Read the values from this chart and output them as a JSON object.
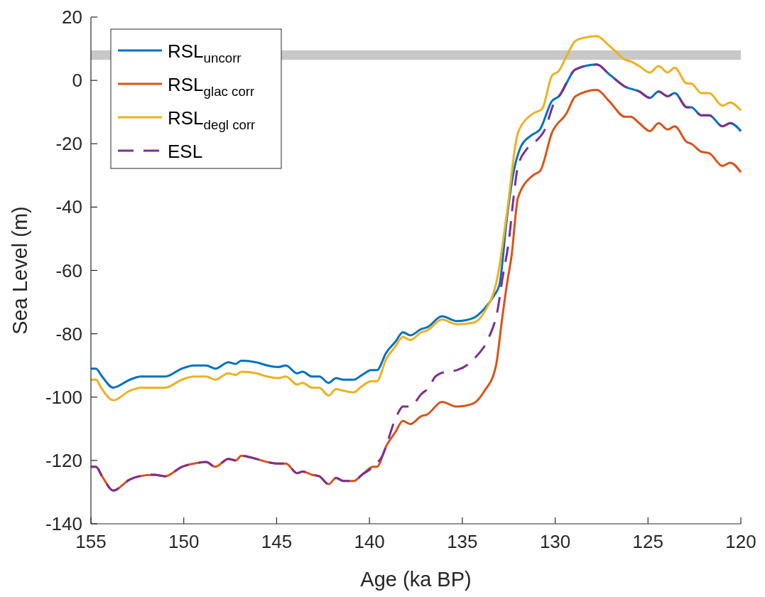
{
  "chart_data": {
    "type": "line",
    "xlabel": "Age (ka BP)",
    "ylabel": "Sea Level (m)",
    "xlim": [
      155,
      120
    ],
    "ylim": [
      -140,
      20
    ],
    "xticks": [
      155,
      150,
      145,
      140,
      135,
      130,
      125,
      120
    ],
    "yticks": [
      -140,
      -120,
      -100,
      -80,
      -60,
      -40,
      -20,
      0,
      20
    ],
    "grid": false,
    "legend": "top left",
    "bands": [
      {
        "axis": "y",
        "from": 6.5,
        "to": 9.5,
        "color": "#c8c8c8"
      }
    ],
    "series": [
      {
        "name": "RSL$_{uncorr}$",
        "color": "#0072bd",
        "line_style": "solid",
        "x": [
          155,
          154.73,
          154.4,
          153.8,
          152.9,
          152.3,
          151.6,
          151,
          150.1,
          149.45,
          148.8,
          148.3,
          147.6,
          147.2,
          146.9,
          146.1,
          145.5,
          144.9,
          144.5,
          143.9,
          143.6,
          143.1,
          142.7,
          142.2,
          141.8,
          141.4,
          140.85,
          140.4,
          139.9,
          139.6,
          139.1,
          138.6,
          138.2,
          137.8,
          137.2,
          136.9,
          136.1,
          135.3,
          134.4,
          133.8,
          133.3,
          133,
          132.6,
          132.24,
          131.85,
          131.32,
          130.82,
          130.17,
          129.79,
          128.9,
          127.76,
          127.1,
          126.23,
          125.47,
          124.9,
          124.43,
          123.94,
          123.56,
          122.9,
          122.67,
          122.14,
          121.7,
          120.99,
          120.57,
          120
        ],
        "values": [
          -91,
          -91,
          -93.5,
          -97,
          -94.5,
          -93.5,
          -93.5,
          -93.5,
          -91,
          -90,
          -90,
          -91,
          -89,
          -89.5,
          -88.5,
          -89,
          -90,
          -90.5,
          -90,
          -92.5,
          -92,
          -93.5,
          -93.5,
          -95.5,
          -94,
          -94.5,
          -94.5,
          -93,
          -91.5,
          -91.5,
          -86,
          -82.5,
          -79.5,
          -80.5,
          -78.5,
          -78,
          -74.5,
          -76,
          -75,
          -72,
          -68,
          -64.5,
          -43.5,
          -29,
          -21,
          -17.5,
          -15.5,
          -6.5,
          -5,
          3.5,
          5,
          2,
          -2,
          -3.5,
          -5.5,
          -3.5,
          -5,
          -4,
          -8.5,
          -8.5,
          -11,
          -11,
          -14.5,
          -13.5,
          -16
        ]
      },
      {
        "name": "RSL$_{glac corr}$",
        "color": "#d95319",
        "line_style": "solid",
        "x": [
          155,
          154.73,
          154.4,
          153.8,
          152.9,
          152.4,
          151.6,
          151,
          150.1,
          149.45,
          148.8,
          148.3,
          147.6,
          147.2,
          146.9,
          146.1,
          145.5,
          144.9,
          144.5,
          143.9,
          143.6,
          143.1,
          142.7,
          142.2,
          141.8,
          141.4,
          140.85,
          140.4,
          139.8,
          139.6,
          139.1,
          138.6,
          138.2,
          137.8,
          137.2,
          136.9,
          136.1,
          135.3,
          134.4,
          133.8,
          133.2,
          132.85,
          132.6,
          132.35,
          132,
          131.2,
          130.8,
          130.17,
          129.4,
          128.9,
          127.76,
          127.1,
          126.23,
          125.93,
          125.47,
          124.9,
          124.43,
          123.94,
          123.56,
          122.9,
          122.67,
          122.14,
          121.7,
          120.99,
          120.57,
          120
        ],
        "values": [
          -122,
          -122,
          -125,
          -129.5,
          -126,
          -125,
          -124.5,
          -125,
          -122,
          -121,
          -120.5,
          -122,
          -119.5,
          -120,
          -118.5,
          -119.5,
          -120.5,
          -121,
          -121,
          -124,
          -123.5,
          -124.5,
          -125,
          -127.5,
          -125.5,
          -126.5,
          -126.5,
          -124.5,
          -122,
          -122,
          -115.5,
          -111,
          -107.5,
          -108.5,
          -106,
          -105.5,
          -101.5,
          -103,
          -102,
          -98,
          -90.5,
          -75,
          -64.5,
          -55.5,
          -37,
          -30,
          -28.5,
          -16.5,
          -10.5,
          -5,
          -3,
          -6.5,
          -11.5,
          -11.5,
          -13.5,
          -16,
          -13.5,
          -15.5,
          -14.5,
          -19.5,
          -20,
          -22.5,
          -23,
          -27,
          -26,
          -29
        ]
      },
      {
        "name": "RSL$_{degl corr}$",
        "color": "#edb120",
        "line_style": "solid",
        "x": [
          155,
          154.73,
          154.4,
          153.8,
          152.9,
          152.3,
          151.6,
          151,
          150.1,
          149.45,
          148.8,
          148.3,
          147.6,
          147.2,
          146.9,
          146.1,
          145.5,
          144.9,
          144.5,
          143.9,
          143.6,
          143.1,
          142.7,
          142.2,
          141.8,
          141.4,
          140.85,
          140.4,
          139.9,
          139.6,
          139.1,
          138.6,
          138.2,
          137.8,
          137.2,
          136.9,
          136.1,
          135.3,
          134.4,
          133.8,
          133.1,
          132.6,
          132,
          131.2,
          130.7,
          130.17,
          129.8,
          129.4,
          128.9,
          128.4,
          127.76,
          127.1,
          126.8,
          126.23,
          125.93,
          125.47,
          124.9,
          124.43,
          123.94,
          123.56,
          122.9,
          122.67,
          122.14,
          121.7,
          120.99,
          120.57,
          120
        ],
        "values": [
          -94.5,
          -94.5,
          -97.5,
          -101,
          -98,
          -97,
          -97,
          -97,
          -94.5,
          -93.5,
          -93.5,
          -94.5,
          -92.5,
          -93,
          -92,
          -92.5,
          -93.5,
          -94,
          -93.5,
          -96,
          -95.5,
          -97,
          -97,
          -99.5,
          -97.5,
          -98,
          -98.5,
          -96.5,
          -95,
          -95,
          -88,
          -84,
          -81,
          -82,
          -79.5,
          -79,
          -75.5,
          -77,
          -76.5,
          -73,
          -62,
          -42,
          -16.5,
          -10.5,
          -9,
          1.5,
          3,
          7.5,
          12.5,
          13.5,
          14,
          11,
          9.5,
          6.5,
          6,
          4.5,
          2.5,
          4.5,
          2.5,
          4,
          -1,
          -1,
          -4,
          -4,
          -8,
          -7,
          -9.5
        ]
      },
      {
        "name": "ESL",
        "color": "#7e2f8e",
        "line_style": "dashed",
        "x": [
          155,
          154.73,
          154.4,
          153.8,
          152.9,
          152.4,
          151.6,
          151,
          150.1,
          149.45,
          148.8,
          148.3,
          147.6,
          147.2,
          146.9,
          146.1,
          145.5,
          144.9,
          144.5,
          143.9,
          143.6,
          143.1,
          142.7,
          142.2,
          141.8,
          141.4,
          140.85,
          140.4,
          139.8,
          139.35,
          138.5,
          138.2,
          137.8,
          137.2,
          136.8,
          136.45,
          135.9,
          135.3,
          134.3,
          133.6,
          133.1,
          132.85,
          132.47,
          132.24,
          132,
          131.5,
          131.1,
          130.55,
          130.05,
          129.79,
          128.9,
          127.76,
          127.1,
          126.23,
          125.47,
          124.9,
          124.43,
          123.94,
          123.56,
          122.9,
          122.67,
          122.14,
          121.7,
          120.99,
          120.57,
          120
        ],
        "values": [
          -122,
          -122,
          -125,
          -129.5,
          -126,
          -125,
          -124.5,
          -125,
          -122,
          -121,
          -120.5,
          -122,
          -119.5,
          -120,
          -118.5,
          -119.5,
          -120.5,
          -121,
          -121,
          -124,
          -123.5,
          -124.5,
          -125,
          -127.5,
          -125.5,
          -126.5,
          -126.5,
          -124.5,
          -122,
          -119,
          -105.5,
          -103,
          -103,
          -99,
          -97,
          -93.5,
          -92,
          -91.5,
          -87.5,
          -81.5,
          -72.5,
          -63,
          -49.5,
          -37,
          -27,
          -21.5,
          -19.5,
          -15.5,
          -7,
          -5,
          3.5,
          5,
          2,
          -2,
          -3.5,
          -5.5,
          -3.5,
          -5,
          -4,
          -8.5,
          -8.5,
          -11,
          -11,
          -14.5,
          -13.5,
          -16
        ]
      }
    ]
  }
}
